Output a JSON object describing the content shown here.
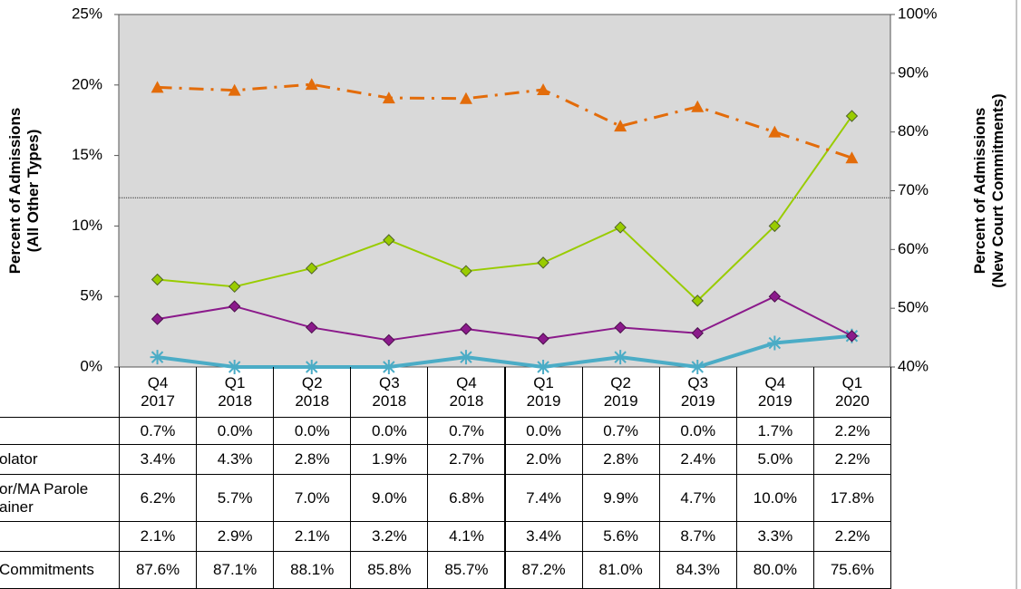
{
  "chart_data": {
    "type": "line",
    "categories": [
      "Q4\n2017",
      "Q1\n2018",
      "Q2\n2018",
      "Q3\n2018",
      "Q4\n2018",
      "Q1\n2019",
      "Q2\n2019",
      "Q3\n2019",
      "Q4\n2019",
      "Q1\n2020"
    ],
    "ylabel": "Percent of Admissions\n(All Other Types)",
    "y2label": "Percent of Admissions\n(New Court Commitments)",
    "ylim": [
      0,
      25
    ],
    "yticks": [
      {
        "value": 0,
        "label": "0%"
      },
      {
        "value": 5,
        "label": "5%"
      },
      {
        "value": 10,
        "label": "10%"
      },
      {
        "value": 15,
        "label": "15%"
      },
      {
        "value": 20,
        "label": "20%"
      },
      {
        "value": 25,
        "label": "25%"
      }
    ],
    "y2lim": [
      40,
      100
    ],
    "y2ticks": [
      {
        "value": 40,
        "label": "40%"
      },
      {
        "value": 50,
        "label": "50%"
      },
      {
        "value": 60,
        "label": "60%"
      },
      {
        "value": 70,
        "label": "70%"
      },
      {
        "value": 80,
        "label": "80%"
      },
      {
        "value": 90,
        "label": "90%"
      },
      {
        "value": 100,
        "label": "100%"
      }
    ],
    "reference_line": 12,
    "series": [
      {
        "color": "#4bacc6",
        "marker": "asterisk",
        "width": 4,
        "values": [
          0.7,
          0.0,
          0.0,
          0.0,
          0.7,
          0.0,
          0.7,
          0.0,
          1.7,
          2.2
        ],
        "value_labels": [
          "0.7%",
          "0.0%",
          "0.0%",
          "0.0%",
          "0.7%",
          "0.0%",
          "0.7%",
          "0.0%",
          "1.7%",
          "2.2%"
        ]
      },
      {
        "name": "olator",
        "color": "#8b1a8b",
        "marker": "diamond",
        "width": 2,
        "values": [
          3.4,
          4.3,
          2.8,
          1.9,
          2.7,
          2.0,
          2.8,
          2.4,
          5.0,
          2.2
        ],
        "value_labels": [
          "3.4%",
          "4.3%",
          "2.8%",
          "1.9%",
          "2.7%",
          "2.0%",
          "2.8%",
          "2.4%",
          "5.0%",
          "2.2%"
        ]
      },
      {
        "name": "or/MA Parole\nainer",
        "color": "#99cc00",
        "marker": "diamond",
        "width": 2,
        "values": [
          6.2,
          5.7,
          7.0,
          9.0,
          6.8,
          7.4,
          9.9,
          4.7,
          10.0,
          17.8
        ],
        "value_labels": [
          "6.2%",
          "5.7%",
          "7.0%",
          "9.0%",
          "6.8%",
          "7.4%",
          "9.9%",
          "4.7%",
          "10.0%",
          "17.8%"
        ]
      },
      {
        "values": [
          2.1,
          2.9,
          2.1,
          3.2,
          4.1,
          3.4,
          5.6,
          8.7,
          3.3,
          2.2
        ],
        "value_labels": [
          "2.1%",
          "2.9%",
          "2.1%",
          "3.2%",
          "4.1%",
          "3.4%",
          "5.6%",
          "8.7%",
          "3.3%",
          "2.2%"
        ]
      },
      {
        "name": "Commitments",
        "color": "#e36c0a",
        "marker": "triangle",
        "width": 3,
        "dash": "dashdot",
        "axis": "y2",
        "values": [
          87.6,
          87.1,
          88.1,
          85.8,
          85.7,
          87.2,
          81.0,
          84.3,
          80.0,
          75.6
        ],
        "value_labels": [
          "87.6%",
          "87.1%",
          "88.1%",
          "85.8%",
          "85.7%",
          "87.2%",
          "81.0%",
          "84.3%",
          "80.0%",
          "75.6%"
        ]
      }
    ]
  }
}
